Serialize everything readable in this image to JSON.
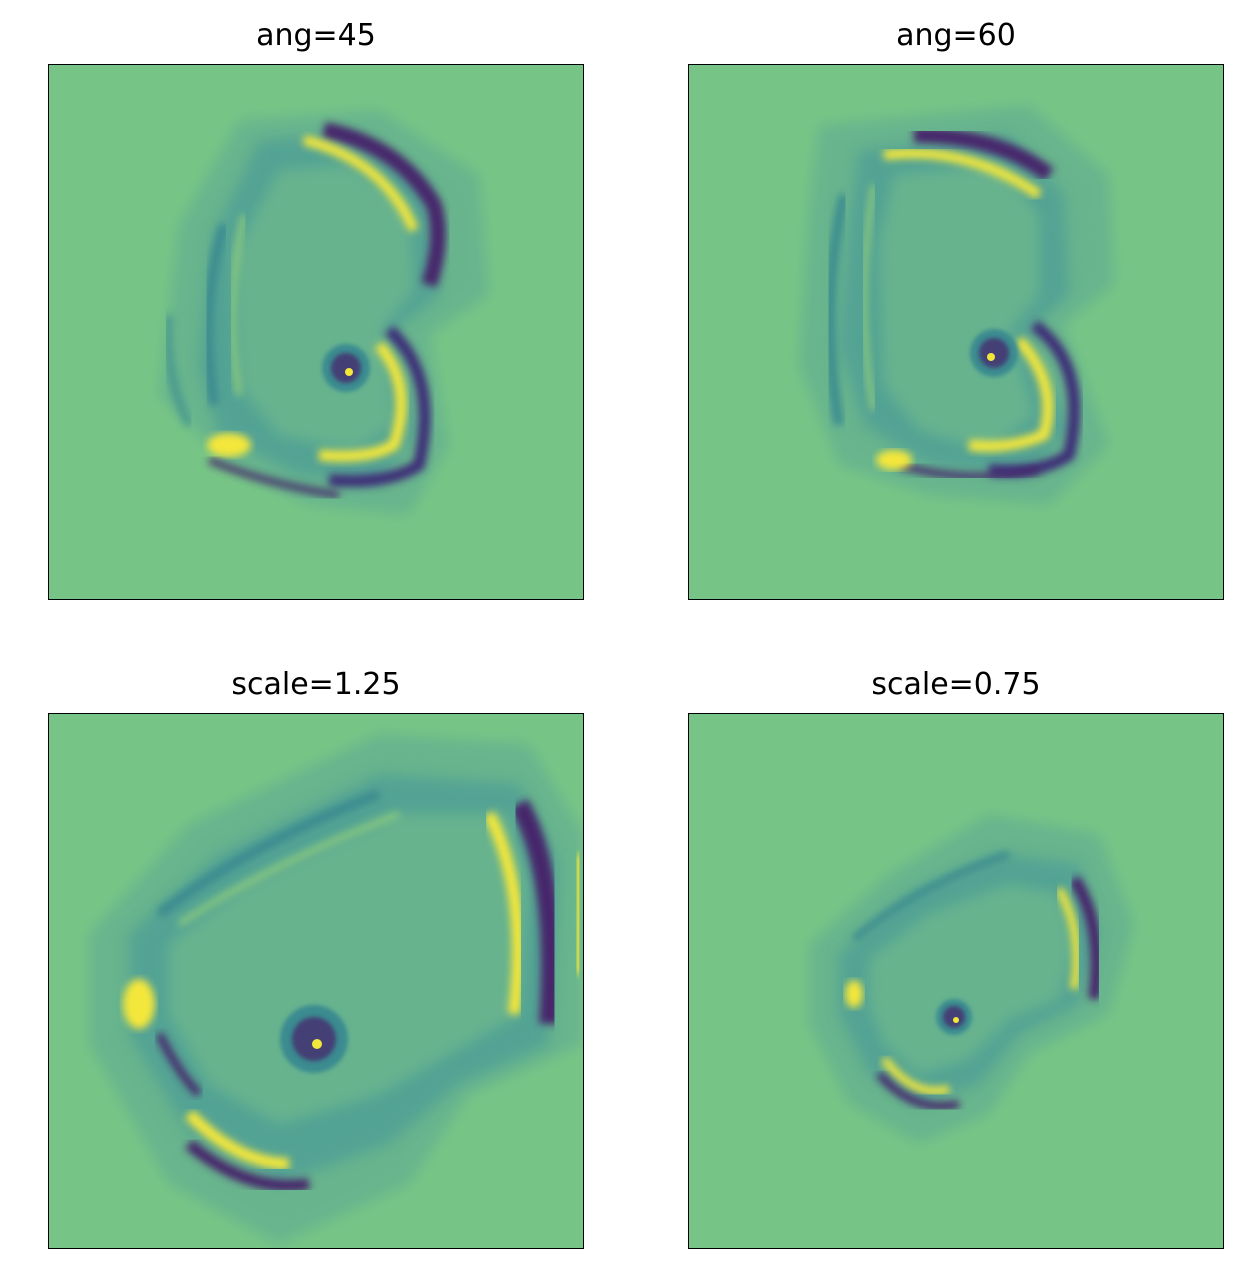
{
  "panels": [
    {
      "title": "ang=45"
    },
    {
      "title": "ang=60"
    },
    {
      "title": "scale=1.25"
    },
    {
      "title": "scale=0.75"
    }
  ],
  "colors": {
    "background_green": "#77c586",
    "yellow": "#f4e73b",
    "dark_purple": "#46256c",
    "teal": "#3b8b90",
    "mid_teal": "#5ba794",
    "light_green": "#8ccb7d"
  }
}
